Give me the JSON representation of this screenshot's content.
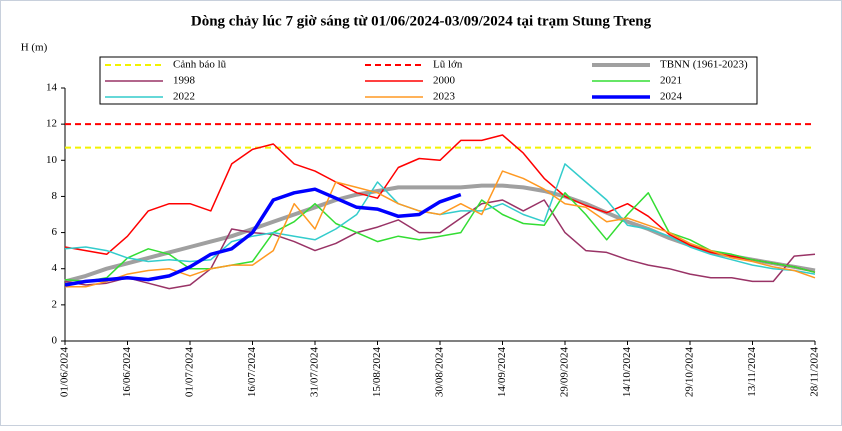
{
  "chart_data": {
    "type": "line",
    "title": "Dòng chảy lúc 7 giờ sáng từ 01/06/2024-03/09/2024 tại trạm Stung Treng",
    "y_label": "H (m)",
    "x": [
      "01/06/2024",
      "06/06/2024",
      "11/06/2024",
      "16/06/2024",
      "21/06/2024",
      "26/06/2024",
      "01/07/2024",
      "06/07/2024",
      "11/07/2024",
      "16/07/2024",
      "21/07/2024",
      "26/07/2024",
      "31/07/2024",
      "05/08/2024",
      "10/08/2024",
      "15/08/2024",
      "20/08/2024",
      "25/08/2024",
      "30/08/2024",
      "04/09/2024",
      "09/09/2024",
      "14/09/2024",
      "19/09/2024",
      "24/09/2024",
      "29/09/2024",
      "04/10/2024",
      "09/10/2024",
      "14/10/2024",
      "19/10/2024",
      "24/10/2024",
      "29/10/2024",
      "03/11/2024",
      "08/11/2024",
      "13/11/2024",
      "18/11/2024",
      "23/11/2024",
      "28/11/2024"
    ],
    "xticks": [
      "01/06/2024",
      "16/06/2024",
      "01/07/2024",
      "16/07/2024",
      "31/07/2024",
      "15/08/2024",
      "30/08/2024",
      "14/09/2024",
      "29/09/2024",
      "14/10/2024",
      "29/10/2024",
      "13/11/2024",
      "28/11/2024"
    ],
    "ylim": [
      0,
      14
    ],
    "yticks": [
      0,
      2,
      4,
      6,
      8,
      10,
      12,
      14
    ],
    "reference_lines": [
      {
        "name": "Cảnh báo lũ",
        "value": 10.7,
        "color": "#f2f200"
      },
      {
        "name": "Lũ lớn",
        "value": 12,
        "color": "#ff0000"
      }
    ],
    "series": [
      {
        "name": "TBNN (1961-2023)",
        "color": "#a0a0a0",
        "line_width": 4,
        "values": [
          3.3,
          3.6,
          4.0,
          4.3,
          4.6,
          4.9,
          5.2,
          5.5,
          5.8,
          6.2,
          6.6,
          7.0,
          7.4,
          7.8,
          8.1,
          8.3,
          8.5,
          8.5,
          8.5,
          8.5,
          8.6,
          8.6,
          8.5,
          8.3,
          8.0,
          7.6,
          7.1,
          6.6,
          6.2,
          5.7,
          5.3,
          4.9,
          4.7,
          4.5,
          4.3,
          4.1,
          3.9
        ]
      },
      {
        "name": "1998",
        "color": "#993366",
        "line_width": 1.5,
        "values": [
          3.3,
          3.1,
          3.2,
          3.5,
          3.2,
          2.9,
          3.1,
          4.0,
          6.2,
          6.0,
          5.9,
          5.5,
          5.0,
          5.4,
          6.0,
          6.3,
          6.7,
          6.0,
          6.0,
          6.8,
          7.6,
          7.8,
          7.2,
          7.8,
          6.0,
          5.0,
          4.9,
          4.5,
          4.2,
          4.0,
          3.7,
          3.5,
          3.5,
          3.3,
          3.3,
          4.7,
          4.8
        ]
      },
      {
        "name": "2000",
        "color": "#ff0000",
        "line_width": 1.5,
        "values": [
          5.2,
          5.0,
          4.8,
          5.8,
          7.2,
          7.6,
          7.6,
          7.2,
          9.8,
          10.6,
          10.9,
          9.8,
          9.4,
          8.8,
          8.2,
          7.9,
          9.6,
          10.1,
          10.0,
          11.1,
          11.1,
          11.4,
          10.4,
          9.0,
          8.0,
          7.5,
          7.1,
          7.6,
          6.9,
          5.9,
          5.3,
          4.9,
          4.7,
          4.5,
          4.3,
          4.1,
          3.8
        ]
      },
      {
        "name": "2021",
        "color": "#33dd33",
        "line_width": 1.5,
        "values": [
          3.4,
          3.3,
          3.5,
          4.6,
          5.1,
          4.8,
          4.0,
          4.0,
          4.2,
          4.4,
          6.0,
          6.6,
          7.6,
          6.5,
          6.0,
          5.5,
          5.8,
          5.6,
          5.8,
          6.0,
          7.8,
          7.0,
          6.5,
          6.4,
          8.2,
          7.0,
          5.6,
          7.0,
          8.2,
          6.0,
          5.6,
          5.0,
          4.8,
          4.5,
          4.3,
          4.1,
          3.8
        ]
      },
      {
        "name": "2022",
        "color": "#33cccc",
        "line_width": 1.5,
        "values": [
          5.1,
          5.2,
          5.0,
          4.6,
          4.4,
          4.5,
          4.4,
          4.5,
          5.5,
          5.8,
          6.0,
          5.8,
          5.6,
          6.2,
          7.0,
          8.8,
          7.6,
          7.2,
          7.0,
          7.2,
          7.2,
          7.6,
          7.0,
          6.6,
          9.8,
          8.8,
          7.8,
          6.4,
          6.2,
          5.8,
          5.2,
          4.8,
          4.5,
          4.2,
          4.0,
          3.9,
          3.7
        ]
      },
      {
        "name": "2023",
        "color": "#ff9922",
        "line_width": 1.5,
        "values": [
          3.0,
          3.0,
          3.3,
          3.7,
          3.9,
          4.0,
          3.6,
          4.0,
          4.2,
          4.2,
          5.0,
          7.6,
          6.2,
          8.8,
          8.5,
          8.2,
          7.6,
          7.2,
          7.0,
          7.6,
          7.0,
          9.4,
          9.0,
          8.4,
          7.6,
          7.4,
          6.6,
          6.8,
          6.4,
          6.0,
          5.4,
          5.0,
          4.6,
          4.4,
          4.1,
          3.9,
          3.5
        ]
      },
      {
        "name": "2024",
        "color": "#0000ff",
        "line_width": 3.5,
        "values": [
          3.1,
          3.3,
          3.4,
          3.5,
          3.4,
          3.6,
          4.1,
          4.8,
          5.1,
          6.0,
          7.8,
          8.2,
          8.4,
          7.9,
          7.4,
          7.3,
          6.9,
          7.0,
          7.7,
          8.1,
          null,
          null,
          null,
          null,
          null,
          null,
          null,
          null,
          null,
          null,
          null,
          null,
          null,
          null,
          null,
          null,
          null
        ]
      }
    ]
  }
}
